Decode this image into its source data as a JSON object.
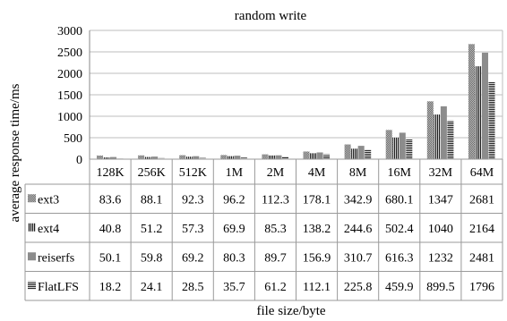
{
  "chart_data": {
    "type": "bar",
    "title": "random write",
    "xlabel": "file size/byte",
    "ylabel": "average response time/ms",
    "ylim": [
      0,
      3000
    ],
    "yticks": [
      0,
      500,
      1000,
      1500,
      2000,
      2500,
      3000
    ],
    "grid": true,
    "legend": "table rows below x-axis",
    "categories": [
      "128K",
      "256K",
      "512K",
      "1M",
      "2M",
      "4M",
      "8M",
      "16M",
      "32M",
      "64M"
    ],
    "series": [
      {
        "name": "ext3",
        "pattern": "checker",
        "color": "#9a9a9a",
        "values": [
          83.6,
          88.1,
          92.3,
          96.2,
          112.3,
          178.1,
          342.9,
          680.1,
          1347,
          2681
        ],
        "labels": [
          "83.6",
          "88.1",
          "92.3",
          "96.2",
          "112.3",
          "178.1",
          "342.9",
          "680.1",
          "1347",
          "2681"
        ]
      },
      {
        "name": "ext4",
        "pattern": "vertical",
        "color": "#3a3a3a",
        "values": [
          40.8,
          51.2,
          57.3,
          69.9,
          85.3,
          138.2,
          244.6,
          502.4,
          1040,
          2164
        ],
        "labels": [
          "40.8",
          "51.2",
          "57.3",
          "69.9",
          "85.3",
          "138.2",
          "244.6",
          "502.4",
          "1040",
          "2164"
        ]
      },
      {
        "name": "reiserfs",
        "pattern": "solid",
        "color": "#8c8c8c",
        "values": [
          50.1,
          59.8,
          69.2,
          80.3,
          89.7,
          156.9,
          310.7,
          616.3,
          1232,
          2481
        ],
        "labels": [
          "50.1",
          "59.8",
          "69.2",
          "80.3",
          "89.7",
          "156.9",
          "310.7",
          "616.3",
          "1232",
          "2481"
        ]
      },
      {
        "name": "FlatLFS",
        "pattern": "horizontal",
        "color": "#5a5a5a",
        "values": [
          18.2,
          24.1,
          28.5,
          35.7,
          61.2,
          112.1,
          225.8,
          459.9,
          899.5,
          1796
        ],
        "labels": [
          "18.2",
          "24.1",
          "28.5",
          "35.7",
          "61.2",
          "112.1",
          "225.8",
          "459.9",
          "899.5",
          "1796"
        ]
      }
    ]
  }
}
